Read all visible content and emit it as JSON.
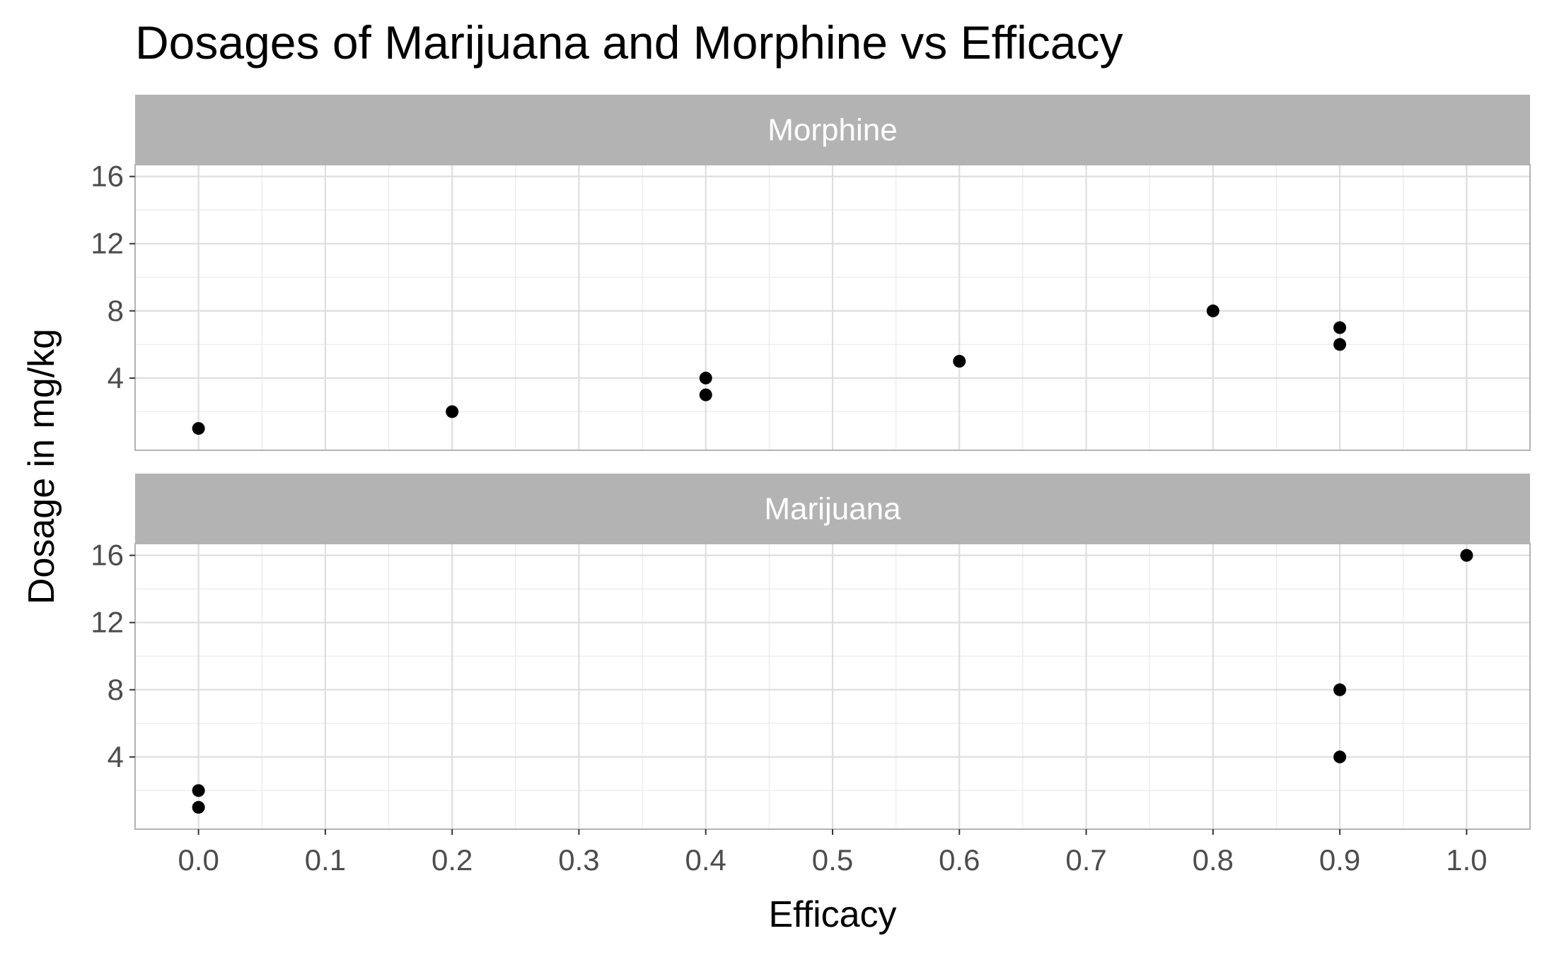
{
  "chart_data": {
    "type": "scatter",
    "title": "Dosages of Marijuana and Morphine vs Efficacy",
    "xlabel": "Efficacy",
    "ylabel": "Dosage in mg/kg",
    "xlim": [
      -0.05,
      1.05
    ],
    "ylim": [
      -0.3,
      16.7
    ],
    "x_ticks": [
      0.0,
      0.1,
      0.2,
      0.3,
      0.4,
      0.5,
      0.6,
      0.7,
      0.8,
      0.9,
      1.0
    ],
    "x_tick_labels": [
      "0.0",
      "0.1",
      "0.2",
      "0.3",
      "0.4",
      "0.5",
      "0.6",
      "0.7",
      "0.8",
      "0.9",
      "1.0"
    ],
    "y_ticks": [
      4,
      8,
      12,
      16
    ],
    "y_tick_labels": [
      "4",
      "8",
      "12",
      "16"
    ],
    "grid": true,
    "legend": "none",
    "point_color": "#000000",
    "strip_color": "#b3b3b3",
    "panels": [
      {
        "name": "Morphine",
        "x": [
          0.0,
          0.2,
          0.4,
          0.4,
          0.6,
          0.8,
          0.9,
          0.9
        ],
        "y": [
          1,
          2,
          3,
          4,
          5,
          8,
          6,
          7
        ]
      },
      {
        "name": "Marijuana",
        "x": [
          0.0,
          0.0,
          0.9,
          0.9,
          1.0
        ],
        "y": [
          1,
          2,
          4,
          8,
          16
        ]
      }
    ]
  }
}
